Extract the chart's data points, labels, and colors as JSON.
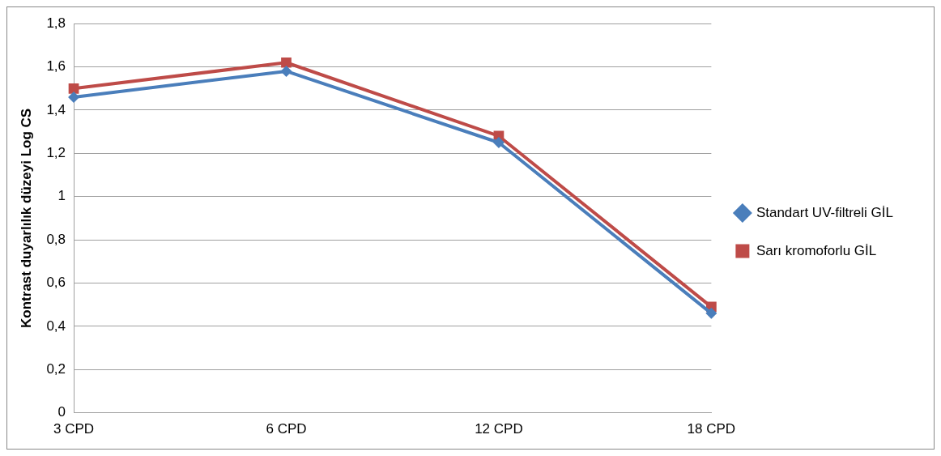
{
  "chart_data": {
    "type": "line",
    "ylabel": "Kontrast duyarlılık düzeyi Log CS",
    "categories": [
      "3 CPD",
      "6 CPD",
      "12 CPD",
      "18 CPD"
    ],
    "series": [
      {
        "name": "Standart UV-filtreli GİL",
        "color": "#4a7ebb",
        "marker": "diamond",
        "values": [
          1.46,
          1.58,
          1.25,
          0.46
        ]
      },
      {
        "name": "Sarı kromoforlu GİL",
        "color": "#be4b48",
        "marker": "square",
        "values": [
          1.5,
          1.62,
          1.28,
          0.49
        ]
      }
    ],
    "ylim": [
      0,
      1.8
    ],
    "yticks": [
      0,
      {
        "value": 0.2,
        "label": "0,2"
      },
      {
        "value": 0.4,
        "label": "0,4"
      },
      {
        "value": 0.6,
        "label": "0,6"
      },
      {
        "value": 0.8,
        "label": "0,8"
      },
      1,
      {
        "value": 1.2,
        "label": "1,2"
      },
      {
        "value": 1.4,
        "label": "1,4"
      },
      {
        "value": 1.6,
        "label": "1,6"
      },
      {
        "value": 1.8,
        "label": "1,8"
      }
    ],
    "grid": "y",
    "legend": "right",
    "line_style": "solid"
  }
}
